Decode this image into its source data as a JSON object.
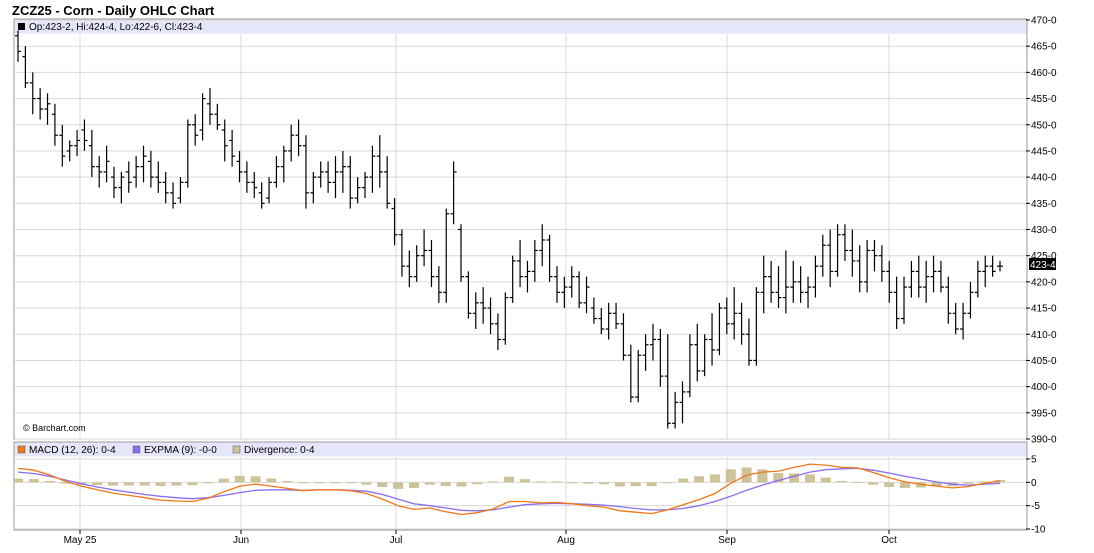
{
  "header": {
    "title": "ZCZ25 - Corn - Daily OHLC Chart",
    "ohlc_readout": "Op:423-2, Hi:424-4, Lo:422-6, Cl:423-4",
    "last_price_tag": "423-4",
    "watermark": "© Barchart.com"
  },
  "macd_legend": {
    "macd": "MACD (12, 26): 0-4",
    "expma": "EXPMA (9): -0-0",
    "divergence": "Divergence: 0-4"
  },
  "colors": {
    "bars": "#000000",
    "macd_line": "#f07818",
    "expma_line": "#8c6cf0",
    "divergence_bars": "#cdc39a",
    "legend_band": "#e6e6fa",
    "grid": "#d9d9d9",
    "last_tag_bg": "#000000"
  },
  "chart_data": [
    {
      "type": "ohlc",
      "title": "ZCZ25 - Corn - Daily OHLC Chart",
      "x_labels": [
        "May 25",
        "Jun",
        "Jul",
        "Aug",
        "Sep",
        "Oct"
      ],
      "y_ticks": [
        "390-0",
        "395-0",
        "400-0",
        "405-0",
        "410-0",
        "415-0",
        "420-0",
        "425-0",
        "430-0",
        "435-0",
        "440-0",
        "445-0",
        "450-0",
        "455-0",
        "460-0",
        "465-0",
        "470-0"
      ],
      "ylim": [
        390,
        470
      ],
      "grid": true,
      "ohlc": [
        [
          467,
          468,
          462,
          464
        ],
        [
          463,
          465,
          457,
          458
        ],
        [
          458,
          460,
          452,
          455
        ],
        [
          455,
          457,
          451,
          453
        ],
        [
          453,
          456,
          450,
          454
        ],
        [
          452,
          454,
          446,
          448
        ],
        [
          448,
          450,
          442,
          444
        ],
        [
          445,
          447,
          443,
          446
        ],
        [
          446,
          449,
          444,
          447
        ],
        [
          449,
          451,
          445,
          447
        ],
        [
          446,
          449,
          440,
          442
        ],
        [
          442,
          444,
          438,
          441
        ],
        [
          441,
          446,
          439,
          443
        ],
        [
          440,
          442,
          436,
          438
        ],
        [
          438,
          441,
          435,
          440
        ],
        [
          441,
          443,
          437,
          439
        ],
        [
          440,
          444,
          438,
          442
        ],
        [
          442,
          446,
          439,
          444
        ],
        [
          443,
          445,
          438,
          440
        ],
        [
          440,
          443,
          437,
          439
        ],
        [
          439,
          441,
          435,
          437
        ],
        [
          437,
          439,
          434,
          435
        ],
        [
          436,
          440,
          435,
          439
        ],
        [
          439,
          451,
          438,
          450
        ],
        [
          450,
          452,
          446,
          448
        ],
        [
          449,
          456,
          447,
          455
        ],
        [
          454,
          457,
          450,
          452
        ],
        [
          452,
          454,
          449,
          450
        ],
        [
          449,
          451,
          443,
          446
        ],
        [
          447,
          449,
          442,
          444
        ],
        [
          443,
          445,
          439,
          441
        ],
        [
          441,
          443,
          437,
          439
        ],
        [
          439,
          441,
          436,
          438
        ],
        [
          437,
          439,
          434,
          435
        ],
        [
          436,
          440,
          435,
          439
        ],
        [
          439,
          444,
          438,
          442
        ],
        [
          442,
          446,
          439,
          445
        ],
        [
          445,
          450,
          443,
          448
        ],
        [
          448,
          451,
          444,
          446
        ],
        [
          446,
          448,
          434,
          437
        ],
        [
          437,
          441,
          435,
          440
        ],
        [
          440,
          443,
          438,
          441
        ],
        [
          441,
          443,
          437,
          439
        ],
        [
          439,
          444,
          436,
          441
        ],
        [
          441,
          445,
          437,
          442
        ],
        [
          442,
          444,
          434,
          436
        ],
        [
          436,
          440,
          435,
          438
        ],
        [
          438,
          441,
          436,
          440
        ],
        [
          440,
          446,
          437,
          444
        ],
        [
          444,
          448,
          438,
          441
        ],
        [
          441,
          444,
          434,
          435
        ],
        [
          434,
          436,
          427,
          429
        ],
        [
          429,
          430,
          421,
          423
        ],
        [
          423,
          426,
          419,
          421
        ],
        [
          421,
          427,
          420,
          425
        ],
        [
          425,
          430,
          423,
          426
        ],
        [
          426,
          428,
          419,
          421
        ],
        [
          421,
          423,
          416,
          418
        ],
        [
          418,
          434,
          416,
          433
        ],
        [
          433,
          443,
          431,
          441
        ],
        [
          430,
          431,
          420,
          421
        ],
        [
          421,
          422,
          413,
          414
        ],
        [
          414,
          418,
          411,
          416
        ],
        [
          416,
          419,
          412,
          415
        ],
        [
          415,
          417,
          410,
          412
        ],
        [
          412,
          414,
          407,
          409
        ],
        [
          409,
          418,
          408,
          417
        ],
        [
          417,
          425,
          416,
          424
        ],
        [
          424,
          428,
          419,
          421
        ],
        [
          421,
          424,
          418,
          422
        ],
        [
          422,
          428,
          420,
          426
        ],
        [
          426,
          431,
          423,
          428
        ],
        [
          428,
          429,
          420,
          421
        ],
        [
          421,
          423,
          416,
          418
        ],
        [
          418,
          421,
          415,
          419
        ],
        [
          419,
          423,
          417,
          421
        ],
        [
          421,
          422,
          415,
          416
        ],
        [
          416,
          421,
          414,
          419
        ],
        [
          415,
          417,
          412,
          413
        ],
        [
          413,
          415,
          410,
          411
        ],
        [
          411,
          416,
          409,
          414
        ],
        [
          414,
          416,
          411,
          412
        ],
        [
          412,
          414,
          405,
          406
        ],
        [
          406,
          408,
          397,
          398
        ],
        [
          398,
          407,
          397,
          406
        ],
        [
          406,
          410,
          403,
          408
        ],
        [
          408,
          412,
          405,
          409
        ],
        [
          409,
          411,
          400,
          402
        ],
        [
          402,
          410,
          392,
          393
        ],
        [
          393,
          399,
          392,
          397
        ],
        [
          397,
          401,
          393,
          399
        ],
        [
          399,
          410,
          398,
          408
        ],
        [
          408,
          412,
          401,
          403
        ],
        [
          403,
          410,
          402,
          409
        ],
        [
          409,
          414,
          404,
          407
        ],
        [
          407,
          416,
          406,
          415
        ],
        [
          415,
          417,
          410,
          412
        ],
        [
          412,
          419,
          409,
          414
        ],
        [
          414,
          416,
          408,
          410
        ],
        [
          410,
          413,
          404,
          405
        ],
        [
          405,
          419,
          404,
          418
        ],
        [
          418,
          425,
          414,
          421
        ],
        [
          421,
          424,
          416,
          418
        ],
        [
          418,
          423,
          415,
          417
        ],
        [
          417,
          426,
          414,
          419
        ],
        [
          419,
          424,
          416,
          420
        ],
        [
          420,
          423,
          416,
          418
        ],
        [
          418,
          421,
          415,
          419
        ],
        [
          419,
          425,
          417,
          423
        ],
        [
          423,
          429,
          421,
          427
        ],
        [
          427,
          430,
          419,
          422
        ],
        [
          422,
          431,
          421,
          429
        ],
        [
          429,
          431,
          424,
          426
        ],
        [
          426,
          430,
          421,
          424
        ],
        [
          424,
          427,
          418,
          420
        ],
        [
          420,
          428,
          418,
          426
        ],
        [
          426,
          428,
          422,
          425
        ],
        [
          425,
          427,
          420,
          422
        ],
        [
          422,
          424,
          416,
          418
        ],
        [
          418,
          421,
          411,
          413
        ],
        [
          413,
          421,
          412,
          419
        ],
        [
          419,
          424,
          417,
          422
        ],
        [
          422,
          425,
          417,
          419
        ],
        [
          419,
          424,
          416,
          421
        ],
        [
          421,
          425,
          418,
          422
        ],
        [
          422,
          424,
          418,
          419
        ],
        [
          419,
          421,
          412,
          414
        ],
        [
          414,
          416,
          410,
          411
        ],
        [
          411,
          416,
          409,
          414
        ],
        [
          414,
          420,
          413,
          418
        ],
        [
          418,
          424,
          417,
          422
        ],
        [
          422,
          425,
          419,
          423
        ],
        [
          423,
          425,
          421,
          422
        ],
        [
          423,
          424,
          422,
          423
        ]
      ]
    },
    {
      "type": "line",
      "title": "MACD (12, 26)",
      "x_labels": [
        "May 25",
        "Jun",
        "Jul",
        "Aug",
        "Sep",
        "Oct"
      ],
      "y_ticks": [
        "-10",
        "-5",
        "0",
        "5"
      ],
      "ylim": [
        -10,
        5
      ],
      "series": [
        {
          "name": "MACD (12, 26)",
          "values": [
            3,
            2.6,
            1.6,
            0.2,
            -0.8,
            -1.6,
            -2.3,
            -2.8,
            -3.3,
            -3.8,
            -4.0,
            -4.1,
            -3.4,
            -2.0,
            -0.8,
            -0.4,
            -0.8,
            -1.3,
            -1.8,
            -1.6,
            -1.6,
            -1.8,
            -2.4,
            -3.6,
            -5.0,
            -5.8,
            -5.5,
            -6.3,
            -6.9,
            -6.5,
            -5.7,
            -4.1,
            -4.1,
            -4.4,
            -4.3,
            -4.6,
            -5.0,
            -5.3,
            -6.1,
            -6.4,
            -6.7,
            -5.9,
            -4.8,
            -3.7,
            -2.4,
            -0.2,
            1.5,
            2.2,
            2.4,
            3.2,
            3.9,
            3.7,
            3.2,
            3.1,
            2.1,
            1.0,
            0.1,
            -0.4,
            -0.8,
            -1.2,
            -0.9,
            -0.2,
            0.3
          ]
        },
        {
          "name": "EXPMA (9)",
          "values": [
            2.2,
            1.9,
            1.3,
            0.5,
            -0.3,
            -1.0,
            -1.6,
            -2.1,
            -2.6,
            -3.0,
            -3.3,
            -3.5,
            -3.3,
            -2.8,
            -2.2,
            -1.7,
            -1.6,
            -1.6,
            -1.7,
            -1.6,
            -1.6,
            -1.7,
            -1.9,
            -2.6,
            -3.6,
            -4.6,
            -5.0,
            -5.5,
            -6.0,
            -6.1,
            -5.9,
            -5.3,
            -4.8,
            -4.6,
            -4.5,
            -4.6,
            -4.7,
            -4.9,
            -5.2,
            -5.6,
            -5.9,
            -5.9,
            -5.6,
            -5.0,
            -4.1,
            -3.0,
            -1.7,
            -0.6,
            0.4,
            1.3,
            2.2,
            2.7,
            2.9,
            3.0,
            2.6,
            2.0,
            1.3,
            0.7,
            0.1,
            -0.4,
            -0.6,
            -0.4,
            -0.2
          ]
        },
        {
          "name": "Divergence",
          "values": [
            0.8,
            0.7,
            0.3,
            -0.3,
            -0.5,
            -0.6,
            -0.7,
            -0.7,
            -0.7,
            -0.8,
            -0.7,
            -0.6,
            -0.1,
            0.8,
            1.4,
            1.3,
            0.8,
            0.3,
            -0.1,
            0.0,
            0.0,
            -0.1,
            -0.5,
            -1.0,
            -1.4,
            -1.2,
            -0.5,
            -0.8,
            -0.9,
            -0.4,
            0.2,
            1.2,
            0.7,
            0.2,
            0.2,
            0.0,
            -0.3,
            -0.4,
            -0.9,
            -0.8,
            -0.8,
            0.0,
            0.8,
            1.3,
            1.7,
            2.8,
            3.2,
            2.8,
            2.0,
            1.9,
            1.7,
            1.0,
            0.3,
            0.1,
            -0.5,
            -1.0,
            -1.2,
            -1.1,
            -0.9,
            -0.8,
            -0.3,
            0.2,
            0.5
          ]
        }
      ]
    }
  ]
}
